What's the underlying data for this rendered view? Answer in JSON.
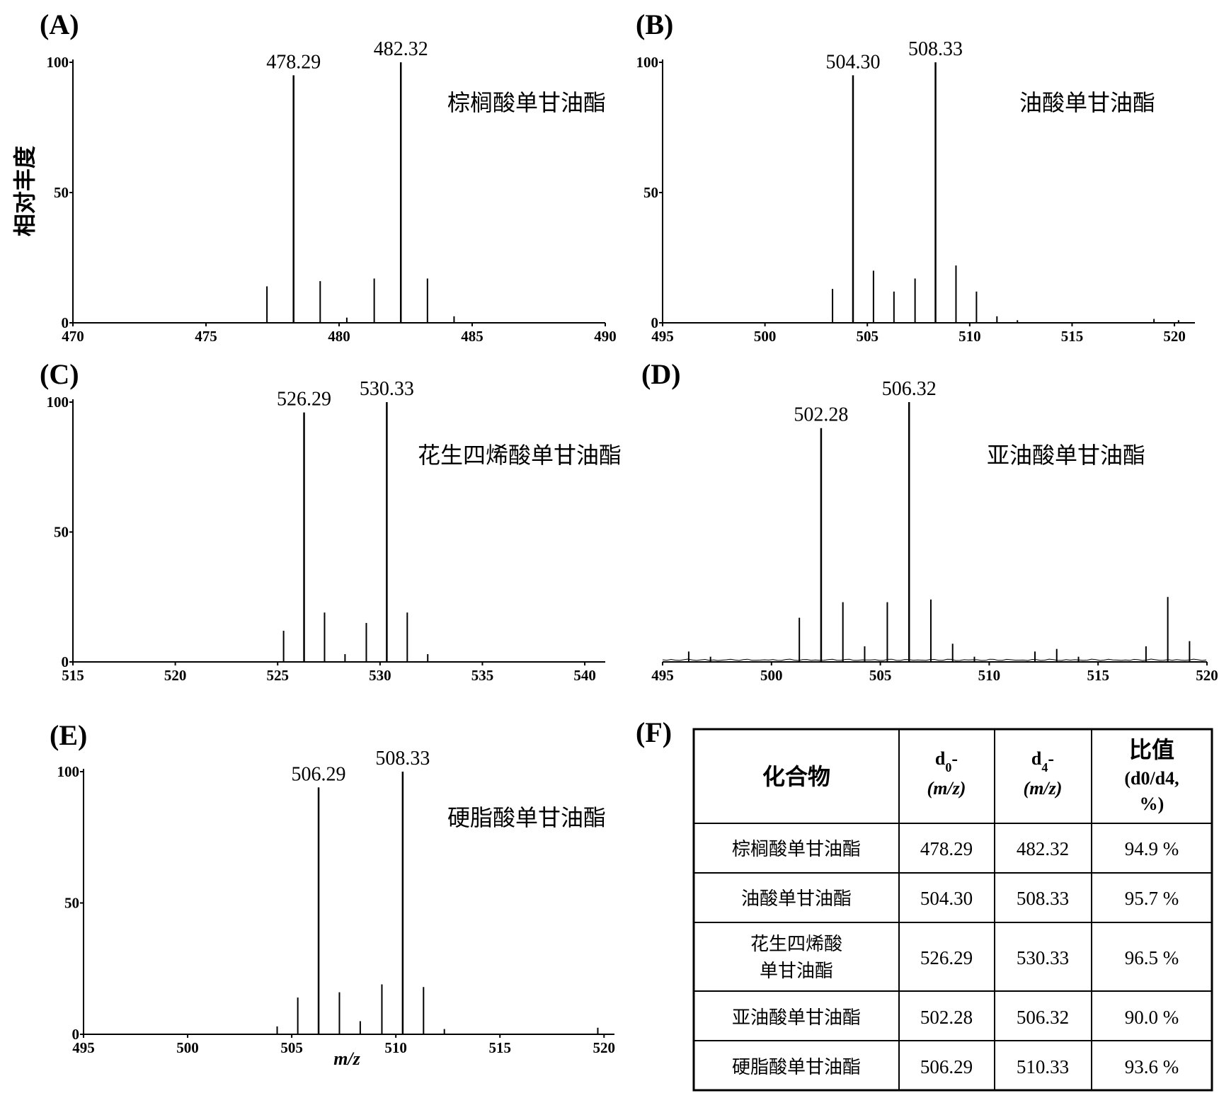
{
  "y_axis_label": "相对丰度",
  "x_axis_label": "m/z",
  "chart_data": [
    {
      "type": "bar",
      "panel": "(A)",
      "compound": "棕榈酸单甘油酯",
      "xlim": [
        470,
        490
      ],
      "ylim": [
        0,
        100
      ],
      "xticks": [
        470,
        475,
        480,
        485,
        490
      ],
      "yticks": [
        0,
        50,
        100
      ],
      "peaks": [
        {
          "mz": 477.29,
          "intensity": 14
        },
        {
          "mz": 478.29,
          "intensity": 95,
          "label": "478.29"
        },
        {
          "mz": 479.29,
          "intensity": 16
        },
        {
          "mz": 480.29,
          "intensity": 2
        },
        {
          "mz": 481.32,
          "intensity": 17
        },
        {
          "mz": 482.32,
          "intensity": 100,
          "label": "482.32"
        },
        {
          "mz": 483.32,
          "intensity": 17
        },
        {
          "mz": 484.32,
          "intensity": 2.5
        }
      ]
    },
    {
      "type": "bar",
      "panel": "(B)",
      "compound": "油酸单甘油酯",
      "xlim": [
        495,
        521
      ],
      "ylim": [
        0,
        100
      ],
      "xticks": [
        495,
        500,
        505,
        510,
        515,
        520
      ],
      "yticks": [
        0,
        50,
        100
      ],
      "peaks": [
        {
          "mz": 503.3,
          "intensity": 13
        },
        {
          "mz": 504.3,
          "intensity": 95,
          "label": "504.30"
        },
        {
          "mz": 505.3,
          "intensity": 20
        },
        {
          "mz": 506.3,
          "intensity": 12
        },
        {
          "mz": 507.33,
          "intensity": 17
        },
        {
          "mz": 508.33,
          "intensity": 100,
          "label": "508.33"
        },
        {
          "mz": 509.33,
          "intensity": 22
        },
        {
          "mz": 510.33,
          "intensity": 12
        },
        {
          "mz": 511.33,
          "intensity": 2.5
        },
        {
          "mz": 512.33,
          "intensity": 1
        },
        {
          "mz": 519.0,
          "intensity": 1.5
        },
        {
          "mz": 520.2,
          "intensity": 1
        }
      ]
    },
    {
      "type": "bar",
      "panel": "(C)",
      "compound": "花生四烯酸单甘油酯",
      "xlim": [
        515,
        541
      ],
      "ylim": [
        0,
        100
      ],
      "xticks": [
        515,
        520,
        525,
        530,
        535,
        540
      ],
      "yticks": [
        0,
        50,
        100
      ],
      "peaks": [
        {
          "mz": 525.29,
          "intensity": 12
        },
        {
          "mz": 526.29,
          "intensity": 96,
          "label": "526.29"
        },
        {
          "mz": 527.29,
          "intensity": 19
        },
        {
          "mz": 528.29,
          "intensity": 3
        },
        {
          "mz": 529.33,
          "intensity": 15
        },
        {
          "mz": 530.33,
          "intensity": 100,
          "label": "530.33"
        },
        {
          "mz": 531.33,
          "intensity": 19
        },
        {
          "mz": 532.33,
          "intensity": 3
        }
      ]
    },
    {
      "type": "bar",
      "panel": "(D)",
      "compound": "亚油酸单甘油酯",
      "xlim": [
        495,
        520
      ],
      "ylim": [
        0,
        100
      ],
      "xticks": [
        495,
        500,
        505,
        510,
        515,
        520
      ],
      "yticks": [],
      "peaks": [
        {
          "mz": 496.2,
          "intensity": 4
        },
        {
          "mz": 497.2,
          "intensity": 2
        },
        {
          "mz": 501.28,
          "intensity": 17
        },
        {
          "mz": 502.28,
          "intensity": 90,
          "label": "502.28"
        },
        {
          "mz": 503.28,
          "intensity": 23
        },
        {
          "mz": 504.28,
          "intensity": 6
        },
        {
          "mz": 505.32,
          "intensity": 23
        },
        {
          "mz": 506.32,
          "intensity": 100,
          "label": "506.32"
        },
        {
          "mz": 507.32,
          "intensity": 24
        },
        {
          "mz": 508.32,
          "intensity": 7
        },
        {
          "mz": 509.32,
          "intensity": 2
        },
        {
          "mz": 512.1,
          "intensity": 4
        },
        {
          "mz": 513.1,
          "intensity": 5
        },
        {
          "mz": 514.1,
          "intensity": 2
        },
        {
          "mz": 517.2,
          "intensity": 6
        },
        {
          "mz": 518.2,
          "intensity": 25
        },
        {
          "mz": 519.2,
          "intensity": 8
        }
      ]
    },
    {
      "type": "bar",
      "panel": "(E)",
      "compound": "硬脂酸单甘油酯",
      "xlim": [
        495,
        520.5
      ],
      "ylim": [
        0,
        100
      ],
      "xticks": [
        495,
        500,
        505,
        510,
        515,
        520
      ],
      "yticks": [
        0,
        50,
        100
      ],
      "peaks": [
        {
          "mz": 504.3,
          "intensity": 3
        },
        {
          "mz": 505.29,
          "intensity": 14
        },
        {
          "mz": 506.29,
          "intensity": 94,
          "label": "506.29"
        },
        {
          "mz": 507.29,
          "intensity": 16
        },
        {
          "mz": 508.29,
          "intensity": 5
        },
        {
          "mz": 509.33,
          "intensity": 19
        },
        {
          "mz": 510.33,
          "intensity": 100,
          "label": "508.33"
        },
        {
          "mz": 511.33,
          "intensity": 18
        },
        {
          "mz": 512.33,
          "intensity": 2
        },
        {
          "mz": 519.7,
          "intensity": 2.5
        }
      ]
    }
  ],
  "table": {
    "panel": "(F)",
    "headers": {
      "compound": "化合物",
      "d0_top": "d",
      "d0_sub": "0",
      "d0_tail": "-",
      "d0_unit": "(m/z)",
      "d4_top": "d",
      "d4_sub": "4",
      "d4_tail": "-",
      "d4_unit": "(m/z)",
      "ratio_title": "比值",
      "ratio_line2": "(d0/d4,",
      "ratio_line3": "%)"
    },
    "rows": [
      {
        "name": "棕榈酸单甘油酯",
        "name2": "",
        "d0": "478.29",
        "d4": "482.32",
        "ratio": "94.9 %"
      },
      {
        "name": "油酸单甘油酯",
        "name2": "",
        "d0": "504.30",
        "d4": "508.33",
        "ratio": "95.7 %"
      },
      {
        "name": "花生四烯酸",
        "name2": "单甘油酯",
        "d0": "526.29",
        "d4": "530.33",
        "ratio": "96.5 %"
      },
      {
        "name": "亚油酸单甘油酯",
        "name2": "",
        "d0": "502.28",
        "d4": "506.32",
        "ratio": "90.0 %"
      },
      {
        "name": "硬脂酸单甘油酯",
        "name2": "",
        "d0": "506.29",
        "d4": "510.33",
        "ratio": "93.6 %"
      }
    ]
  }
}
